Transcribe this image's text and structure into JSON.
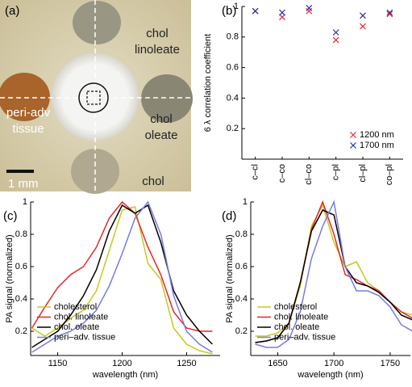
{
  "image": {
    "label": "(a)",
    "labels": [
      [
        "chol",
        "linoleate"
      ],
      [
        "peri-adv",
        "tissue"
      ],
      [
        "chol",
        "oleate"
      ],
      [
        "chol"
      ]
    ],
    "scale_bar": "1 mm"
  },
  "chart_data": [
    {
      "type": "scatter",
      "label": "(b)",
      "y_label": "6 λ correlation coefficient",
      "categories": [
        "c–cl",
        "c–co",
        "cl–co",
        "c–pl",
        "cl–pl",
        "co–pl"
      ],
      "series": [
        {
          "name": "1200 nm",
          "color": "#e8262b",
          "values": [
            0.97,
            0.93,
            0.97,
            0.78,
            0.87,
            0.95
          ]
        },
        {
          "name": "1700 nm",
          "color": "#2b2fa8",
          "values": [
            0.97,
            0.96,
            0.99,
            0.83,
            0.94,
            0.96
          ]
        }
      ],
      "ylim": [
        0,
        1
      ],
      "yticks": [
        0.2,
        0.4,
        0.6,
        0.8,
        1
      ],
      "legend": "lower right"
    },
    {
      "type": "line",
      "label": "(c)",
      "x_label": "wavelength (nm)",
      "y_label": "PA signal (normalized)",
      "x": [
        1130,
        1140,
        1150,
        1160,
        1170,
        1180,
        1190,
        1200,
        1210,
        1220,
        1230,
        1240,
        1250,
        1260,
        1270
      ],
      "series": [
        {
          "name": "cholesterol",
          "color": "#c8c81e",
          "values": [
            0.22,
            0.17,
            0.22,
            0.28,
            0.33,
            0.45,
            0.7,
            0.95,
            0.97,
            0.62,
            0.52,
            0.22,
            0.12,
            0.08,
            0.06
          ]
        },
        {
          "name": "chol. linoleate",
          "color": "#e8262b",
          "values": [
            0.22,
            0.35,
            0.47,
            0.55,
            0.6,
            0.72,
            0.9,
            1.0,
            0.93,
            0.72,
            0.55,
            0.32,
            0.22,
            0.2,
            0.2
          ]
        },
        {
          "name": "chol. oleate",
          "color": "#000000",
          "values": [
            0.1,
            0.15,
            0.2,
            0.3,
            0.42,
            0.58,
            0.82,
            0.98,
            0.93,
            0.98,
            0.75,
            0.45,
            0.3,
            0.2,
            0.12
          ]
        },
        {
          "name": "peri–adv. tissue",
          "color": "#7a7ae0",
          "values": [
            0.07,
            0.12,
            0.17,
            0.2,
            0.25,
            0.33,
            0.48,
            0.68,
            0.9,
            1.0,
            0.8,
            0.42,
            0.2,
            0.12,
            0.07
          ]
        }
      ],
      "xlim": [
        1129,
        1276
      ],
      "xticks": [
        1150,
        1200,
        1250
      ],
      "ylim": [
        0.05,
        1
      ],
      "yticks": [
        0.2,
        0.4,
        0.6,
        0.8,
        1
      ],
      "legend": "lower left"
    },
    {
      "type": "line",
      "label": "(d)",
      "x_label": "wavelength (nm)",
      "y_label": "PA signal (normalized)",
      "x": [
        1630,
        1640,
        1650,
        1660,
        1670,
        1680,
        1690,
        1700,
        1710,
        1720,
        1730,
        1740,
        1750,
        1760,
        1770
      ],
      "series": [
        {
          "name": "cholesterol",
          "color": "#c8c81e",
          "values": [
            0.17,
            0.17,
            0.19,
            0.25,
            0.48,
            0.85,
            0.98,
            0.75,
            0.6,
            0.63,
            0.5,
            0.45,
            0.38,
            0.32,
            0.3
          ]
        },
        {
          "name": "chol. linoleate",
          "color": "#e8262b",
          "values": [
            0.13,
            0.14,
            0.16,
            0.25,
            0.5,
            0.83,
            1.0,
            0.8,
            0.55,
            0.52,
            0.48,
            0.45,
            0.38,
            0.32,
            0.28
          ]
        },
        {
          "name": "chol. oleate",
          "color": "#000000",
          "values": [
            0.13,
            0.14,
            0.16,
            0.25,
            0.5,
            0.82,
            0.95,
            0.92,
            0.6,
            0.5,
            0.48,
            0.44,
            0.38,
            0.3,
            0.27
          ]
        },
        {
          "name": "peri–adv. tissue",
          "color": "#7a7ae0",
          "values": [
            0.12,
            0.1,
            0.1,
            0.15,
            0.32,
            0.65,
            0.85,
            1.0,
            0.6,
            0.45,
            0.45,
            0.42,
            0.35,
            0.24,
            0.2
          ]
        }
      ],
      "xlim": [
        1626,
        1768
      ],
      "xticks": [
        1650,
        1700,
        1750
      ],
      "ylim": [
        0.05,
        1
      ],
      "yticks": [
        0.2,
        0.4,
        0.6,
        0.8,
        1
      ],
      "legend": "lower left"
    }
  ]
}
